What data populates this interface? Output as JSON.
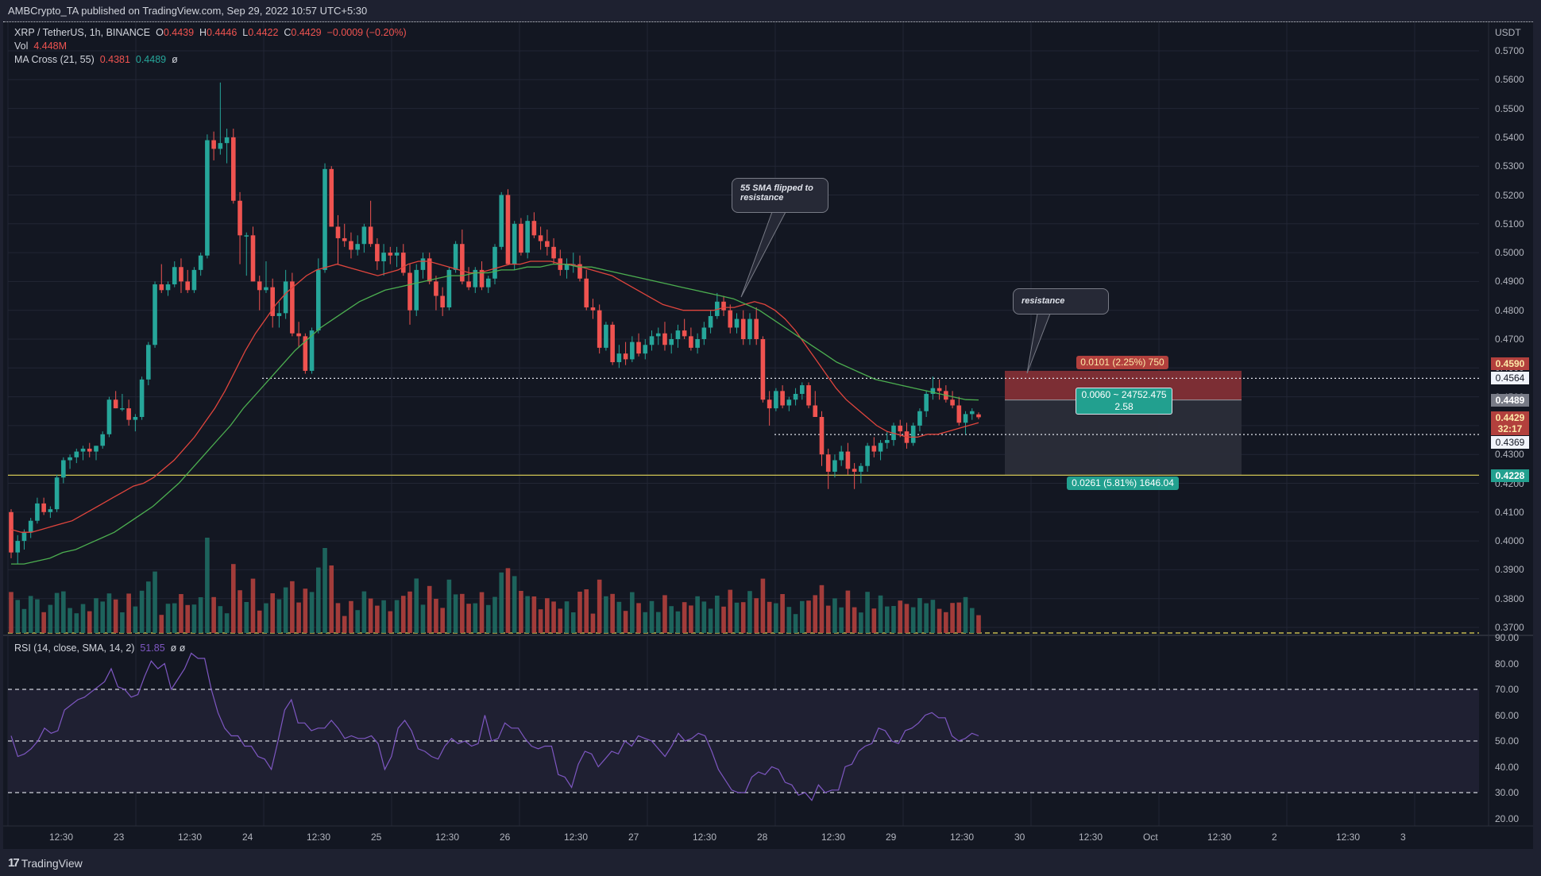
{
  "publish_line": "AMBCrypto_TA published on TradingView.com, Sep 29, 2022 10:57 UTC+5:30",
  "symbol": {
    "title": "XRP / TetherUS, 1h, BINANCE",
    "open_label": "O",
    "open": "0.4439",
    "high_label": "H",
    "high": "0.4446",
    "low_label": "L",
    "low": "0.4422",
    "close_label": "C",
    "close": "0.4429",
    "change": "−0.0009 (−0.20%)"
  },
  "volume": {
    "label": "Vol",
    "value": "4.448M"
  },
  "ma_cross": {
    "label": "MA Cross (21, 55)",
    "fast": "0.4381",
    "slow": "0.4489",
    "extra": "ø"
  },
  "rsi": {
    "label": "RSI (14, close, SMA, 14, 2)",
    "value": "51.85",
    "extra": "ø ø"
  },
  "price_axis": {
    "currency": "USDT",
    "ticks": [
      "0.5700",
      "0.5600",
      "0.5500",
      "0.5400",
      "0.5300",
      "0.5200",
      "0.5100",
      "0.5000",
      "0.4900",
      "0.4800",
      "0.4700",
      "0.4600",
      "0.4500",
      "0.4400",
      "0.4300",
      "0.4200",
      "0.4100",
      "0.4000",
      "0.3900",
      "0.3800",
      "0.3700"
    ],
    "tags": {
      "stop": {
        "value": "0.4590",
        "color": "#b2403d"
      },
      "resistance_line": {
        "value": "0.4564"
      },
      "ma_slow": {
        "value": "0.4489",
        "color": "#787b86"
      },
      "current": {
        "value": "0.4429",
        "countdown": "32:17",
        "color": "#b2403d"
      },
      "support_line": {
        "value": "0.4369"
      },
      "target": {
        "value": "0.4228",
        "color": "#22a08f"
      }
    }
  },
  "rsi_axis": {
    "ticks": [
      "90.00",
      "80.00",
      "70.00",
      "60.00",
      "50.00",
      "40.00",
      "30.00",
      "20.00"
    ]
  },
  "time_axis": {
    "labels": [
      "12:30",
      "23",
      "12:30",
      "24",
      "12:30",
      "25",
      "12:30",
      "26",
      "12:30",
      "27",
      "12:30",
      "28",
      "12:30",
      "29",
      "12:30",
      "30",
      "12:30",
      "Oct",
      "12:30",
      "2",
      "12:30",
      "3"
    ]
  },
  "annotations": {
    "callout_sma": "55 SMA flipped to resistance",
    "callout_resistance": "resistance"
  },
  "short_position": {
    "stop_label": "0.0101 (2.25%) 750",
    "entry_label_line1": "0.0060 ~ 24752.475",
    "entry_label_line2": "2.58",
    "target_label": "0.0261 (5.81%) 1646.04"
  },
  "footer": {
    "brand": "TradingView"
  },
  "colors": {
    "up": "#26a69a",
    "down": "#ef5350",
    "ma21": "#e0453d",
    "ma55": "#4caf50",
    "rsi": "#7e57c2",
    "support_line": "#e6d85a",
    "background": "#131722"
  },
  "chart_data": {
    "type": "candlestick",
    "title": "XRP / TetherUS, 1h, BINANCE",
    "ylabel": "USDT",
    "ylim": [
      0.365,
      0.575
    ],
    "x_labels": [
      "12:30",
      "23",
      "12:30",
      "24",
      "12:30",
      "25",
      "12:30",
      "26",
      "12:30",
      "27",
      "12:30",
      "28",
      "12:30",
      "29"
    ],
    "horizontal_levels": {
      "resistance": 0.4564,
      "support": 0.4369,
      "major_support": 0.4228
    },
    "ohlc_approx": [
      [
        0.41,
        0.411,
        0.394,
        0.396
      ],
      [
        0.396,
        0.402,
        0.392,
        0.4
      ],
      [
        0.4,
        0.404,
        0.397,
        0.403
      ],
      [
        0.403,
        0.408,
        0.401,
        0.407
      ],
      [
        0.407,
        0.415,
        0.406,
        0.413
      ],
      [
        0.413,
        0.415,
        0.409,
        0.41
      ],
      [
        0.41,
        0.412,
        0.408,
        0.411
      ],
      [
        0.411,
        0.423,
        0.41,
        0.422
      ],
      [
        0.422,
        0.429,
        0.42,
        0.428
      ],
      [
        0.428,
        0.43,
        0.425,
        0.429
      ],
      [
        0.429,
        0.432,
        0.427,
        0.431
      ],
      [
        0.431,
        0.433,
        0.428,
        0.432
      ],
      [
        0.432,
        0.434,
        0.429,
        0.431
      ],
      [
        0.431,
        0.433,
        0.428,
        0.433
      ],
      [
        0.433,
        0.438,
        0.432,
        0.437
      ],
      [
        0.437,
        0.45,
        0.436,
        0.449
      ],
      [
        0.449,
        0.452,
        0.446,
        0.446
      ],
      [
        0.446,
        0.451,
        0.445,
        0.446
      ],
      [
        0.446,
        0.449,
        0.44,
        0.442
      ],
      [
        0.442,
        0.444,
        0.438,
        0.443
      ],
      [
        0.443,
        0.457,
        0.442,
        0.456
      ],
      [
        0.456,
        0.469,
        0.454,
        0.468
      ],
      [
        0.468,
        0.49,
        0.467,
        0.489
      ],
      [
        0.489,
        0.496,
        0.486,
        0.487
      ],
      [
        0.487,
        0.49,
        0.485,
        0.489
      ],
      [
        0.489,
        0.497,
        0.488,
        0.495
      ],
      [
        0.495,
        0.498,
        0.486,
        0.49
      ],
      [
        0.49,
        0.494,
        0.486,
        0.487
      ],
      [
        0.487,
        0.495,
        0.486,
        0.494
      ],
      [
        0.494,
        0.5,
        0.492,
        0.499
      ],
      [
        0.499,
        0.541,
        0.498,
        0.539
      ],
      [
        0.539,
        0.542,
        0.532,
        0.536
      ],
      [
        0.536,
        0.559,
        0.534,
        0.538
      ],
      [
        0.538,
        0.543,
        0.531,
        0.54
      ],
      [
        0.54,
        0.543,
        0.517,
        0.518
      ],
      [
        0.518,
        0.521,
        0.496,
        0.506
      ],
      [
        0.506,
        0.507,
        0.492,
        0.506
      ],
      [
        0.506,
        0.509,
        0.49,
        0.49
      ],
      [
        0.49,
        0.492,
        0.48,
        0.487
      ],
      [
        0.487,
        0.497,
        0.486,
        0.488
      ],
      [
        0.488,
        0.491,
        0.474,
        0.478
      ],
      [
        0.478,
        0.483,
        0.474,
        0.479
      ],
      [
        0.479,
        0.494,
        0.477,
        0.49
      ],
      [
        0.49,
        0.493,
        0.471,
        0.472
      ],
      [
        0.472,
        0.476,
        0.467,
        0.471
      ],
      [
        0.471,
        0.472,
        0.458,
        0.459
      ],
      [
        0.459,
        0.474,
        0.458,
        0.473
      ],
      [
        0.473,
        0.498,
        0.472,
        0.494
      ],
      [
        0.494,
        0.531,
        0.493,
        0.529
      ],
      [
        0.529,
        0.53,
        0.509,
        0.509
      ],
      [
        0.509,
        0.513,
        0.496,
        0.505
      ],
      [
        0.505,
        0.51,
        0.502,
        0.504
      ],
      [
        0.504,
        0.507,
        0.498,
        0.501
      ],
      [
        0.501,
        0.506,
        0.499,
        0.503
      ],
      [
        0.503,
        0.51,
        0.5,
        0.509
      ],
      [
        0.509,
        0.518,
        0.502,
        0.503
      ],
      [
        0.503,
        0.505,
        0.494,
        0.497
      ],
      [
        0.497,
        0.503,
        0.492,
        0.5
      ],
      [
        0.5,
        0.502,
        0.496,
        0.499
      ],
      [
        0.499,
        0.502,
        0.495,
        0.5
      ],
      [
        0.5,
        0.503,
        0.492,
        0.493
      ],
      [
        0.493,
        0.496,
        0.475,
        0.48
      ],
      [
        0.48,
        0.496,
        0.478,
        0.494
      ],
      [
        0.494,
        0.5,
        0.491,
        0.498
      ],
      [
        0.498,
        0.5,
        0.489,
        0.49
      ],
      [
        0.49,
        0.492,
        0.48,
        0.485
      ],
      [
        0.485,
        0.488,
        0.478,
        0.481
      ],
      [
        0.481,
        0.495,
        0.48,
        0.494
      ],
      [
        0.494,
        0.504,
        0.493,
        0.503
      ],
      [
        0.503,
        0.508,
        0.489,
        0.49
      ],
      [
        0.49,
        0.495,
        0.487,
        0.488
      ],
      [
        0.488,
        0.495,
        0.486,
        0.494
      ],
      [
        0.494,
        0.497,
        0.487,
        0.488
      ],
      [
        0.488,
        0.492,
        0.486,
        0.491
      ],
      [
        0.491,
        0.503,
        0.489,
        0.502
      ],
      [
        0.502,
        0.521,
        0.501,
        0.52
      ],
      [
        0.52,
        0.522,
        0.496,
        0.496
      ],
      [
        0.496,
        0.511,
        0.494,
        0.51
      ],
      [
        0.51,
        0.512,
        0.499,
        0.5
      ],
      [
        0.5,
        0.513,
        0.498,
        0.511
      ],
      [
        0.511,
        0.514,
        0.505,
        0.506
      ],
      [
        0.506,
        0.509,
        0.501,
        0.504
      ],
      [
        0.504,
        0.508,
        0.499,
        0.502
      ],
      [
        0.502,
        0.505,
        0.496,
        0.498
      ],
      [
        0.498,
        0.501,
        0.492,
        0.494
      ],
      [
        0.494,
        0.498,
        0.491,
        0.496
      ],
      [
        0.496,
        0.5,
        0.493,
        0.496
      ],
      [
        0.496,
        0.499,
        0.49,
        0.491
      ],
      [
        0.491,
        0.494,
        0.48,
        0.481
      ],
      [
        0.481,
        0.484,
        0.477,
        0.48
      ],
      [
        0.48,
        0.482,
        0.465,
        0.467
      ],
      [
        0.467,
        0.476,
        0.466,
        0.475
      ],
      [
        0.475,
        0.476,
        0.461,
        0.462
      ],
      [
        0.462,
        0.468,
        0.46,
        0.465
      ],
      [
        0.465,
        0.469,
        0.461,
        0.463
      ],
      [
        0.463,
        0.471,
        0.462,
        0.469
      ],
      [
        0.469,
        0.472,
        0.464,
        0.465
      ],
      [
        0.465,
        0.47,
        0.463,
        0.468
      ],
      [
        0.468,
        0.473,
        0.466,
        0.471
      ],
      [
        0.471,
        0.474,
        0.468,
        0.472
      ],
      [
        0.472,
        0.476,
        0.466,
        0.468
      ],
      [
        0.468,
        0.472,
        0.465,
        0.47
      ],
      [
        0.47,
        0.475,
        0.467,
        0.473
      ],
      [
        0.473,
        0.477,
        0.47,
        0.471
      ],
      [
        0.471,
        0.474,
        0.466,
        0.467
      ],
      [
        0.467,
        0.472,
        0.465,
        0.47
      ],
      [
        0.47,
        0.476,
        0.468,
        0.474
      ],
      [
        0.474,
        0.48,
        0.472,
        0.478
      ],
      [
        0.478,
        0.486,
        0.477,
        0.483
      ],
      [
        0.483,
        0.485,
        0.478,
        0.48
      ],
      [
        0.48,
        0.482,
        0.472,
        0.474
      ],
      [
        0.474,
        0.479,
        0.472,
        0.477
      ],
      [
        0.477,
        0.48,
        0.468,
        0.47
      ],
      [
        0.47,
        0.479,
        0.468,
        0.477
      ],
      [
        0.477,
        0.481,
        0.468,
        0.47
      ],
      [
        0.47,
        0.471,
        0.448,
        0.449
      ],
      [
        0.449,
        0.452,
        0.44,
        0.446
      ],
      [
        0.446,
        0.453,
        0.445,
        0.452
      ],
      [
        0.452,
        0.454,
        0.446,
        0.447
      ],
      [
        0.447,
        0.45,
        0.445,
        0.449
      ],
      [
        0.449,
        0.453,
        0.447,
        0.451
      ],
      [
        0.451,
        0.455,
        0.449,
        0.454
      ],
      [
        0.454,
        0.455,
        0.446,
        0.447
      ],
      [
        0.447,
        0.452,
        0.444,
        0.443
      ],
      [
        0.443,
        0.445,
        0.426,
        0.43
      ],
      [
        0.43,
        0.432,
        0.418,
        0.424
      ],
      [
        0.424,
        0.43,
        0.422,
        0.428
      ],
      [
        0.428,
        0.433,
        0.426,
        0.431
      ],
      [
        0.431,
        0.434,
        0.423,
        0.425
      ],
      [
        0.425,
        0.427,
        0.418,
        0.424
      ],
      [
        0.424,
        0.427,
        0.42,
        0.426
      ],
      [
        0.426,
        0.434,
        0.424,
        0.433
      ],
      [
        0.433,
        0.436,
        0.429,
        0.431
      ],
      [
        0.431,
        0.435,
        0.428,
        0.434
      ],
      [
        0.434,
        0.438,
        0.432,
        0.435
      ],
      [
        0.435,
        0.441,
        0.433,
        0.44
      ],
      [
        0.44,
        0.442,
        0.436,
        0.438
      ],
      [
        0.438,
        0.441,
        0.432,
        0.434
      ],
      [
        0.434,
        0.441,
        0.433,
        0.44
      ],
      [
        0.44,
        0.446,
        0.438,
        0.445
      ],
      [
        0.445,
        0.452,
        0.443,
        0.451
      ],
      [
        0.451,
        0.457,
        0.449,
        0.453
      ],
      [
        0.453,
        0.456,
        0.449,
        0.452
      ],
      [
        0.452,
        0.454,
        0.448,
        0.449
      ],
      [
        0.449,
        0.452,
        0.446,
        0.447
      ],
      [
        0.447,
        0.45,
        0.44,
        0.441
      ],
      [
        0.441,
        0.445,
        0.437,
        0.444
      ],
      [
        0.444,
        0.446,
        0.442,
        0.445
      ],
      [
        0.4439,
        0.4446,
        0.4422,
        0.4429
      ]
    ],
    "ma21_approx": [
      0.404,
      0.403,
      0.403,
      0.404,
      0.405,
      0.406,
      0.407,
      0.409,
      0.411,
      0.413,
      0.415,
      0.417,
      0.419,
      0.42,
      0.422,
      0.425,
      0.428,
      0.432,
      0.436,
      0.441,
      0.446,
      0.452,
      0.459,
      0.466,
      0.472,
      0.477,
      0.482,
      0.486,
      0.489,
      0.492,
      0.494,
      0.495,
      0.496,
      0.495,
      0.494,
      0.493,
      0.492,
      0.493,
      0.494,
      0.496,
      0.497,
      0.497,
      0.496,
      0.495,
      0.494,
      0.493,
      0.493,
      0.494,
      0.495,
      0.496,
      0.496,
      0.497,
      0.497,
      0.497,
      0.496,
      0.496,
      0.495,
      0.494,
      0.493,
      0.492,
      0.49,
      0.488,
      0.486,
      0.484,
      0.482,
      0.481,
      0.48,
      0.48,
      0.48,
      0.48,
      0.481,
      0.481,
      0.482,
      0.483,
      0.482,
      0.48,
      0.477,
      0.473,
      0.468,
      0.463,
      0.458,
      0.453,
      0.449,
      0.446,
      0.443,
      0.44,
      0.438,
      0.437,
      0.436,
      0.436,
      0.437,
      0.437,
      0.438,
      0.439,
      0.44,
      0.441
    ],
    "ma55_approx": [
      0.392,
      0.392,
      0.393,
      0.394,
      0.396,
      0.397,
      0.399,
      0.401,
      0.403,
      0.406,
      0.409,
      0.412,
      0.416,
      0.42,
      0.425,
      0.43,
      0.435,
      0.44,
      0.446,
      0.451,
      0.456,
      0.461,
      0.466,
      0.47,
      0.474,
      0.477,
      0.48,
      0.483,
      0.485,
      0.487,
      0.488,
      0.489,
      0.49,
      0.491,
      0.492,
      0.492,
      0.493,
      0.493,
      0.494,
      0.494,
      0.495,
      0.495,
      0.496,
      0.496,
      0.495,
      0.495,
      0.494,
      0.493,
      0.492,
      0.491,
      0.49,
      0.489,
      0.488,
      0.487,
      0.486,
      0.485,
      0.484,
      0.482,
      0.48,
      0.477,
      0.474,
      0.471,
      0.468,
      0.465,
      0.462,
      0.46,
      0.458,
      0.456,
      0.455,
      0.454,
      0.453,
      0.452,
      0.451,
      0.45,
      0.449,
      0.4489
    ],
    "rsi_approx": [
      52,
      44,
      45,
      47,
      50,
      55,
      53,
      54,
      62,
      64,
      66,
      67,
      69,
      71,
      73,
      78,
      71,
      70,
      67,
      68,
      75,
      81,
      78,
      80,
      70,
      74,
      78,
      84,
      82,
      82,
      70,
      61,
      55,
      52,
      52,
      48,
      48,
      44,
      43,
      39,
      50,
      62,
      66,
      57,
      57,
      54,
      55,
      55,
      58,
      55,
      51,
      52,
      51,
      51,
      52,
      49,
      39,
      44,
      55,
      58,
      54,
      47,
      46,
      44,
      43,
      48,
      51,
      49,
      50,
      48,
      49,
      60,
      50,
      51,
      57,
      55,
      55,
      51,
      48,
      47,
      48,
      48,
      37,
      36,
      32,
      41,
      46,
      45,
      40,
      43,
      46,
      45,
      50,
      48,
      52,
      51,
      50,
      47,
      44,
      48,
      53,
      50,
      51,
      53,
      52,
      46,
      39,
      35,
      31,
      30,
      30,
      36,
      38,
      37,
      40,
      39,
      34,
      33,
      29,
      30,
      27,
      33,
      30,
      31,
      31,
      40,
      41,
      46,
      48,
      49,
      55,
      54,
      50,
      49,
      54,
      55,
      57,
      60,
      61,
      59,
      59,
      52,
      50,
      51,
      53,
      52
    ],
    "volume_note": "Volume histogram colored by candle direction; largest bars around 23 12:30 and 27 evening."
  }
}
